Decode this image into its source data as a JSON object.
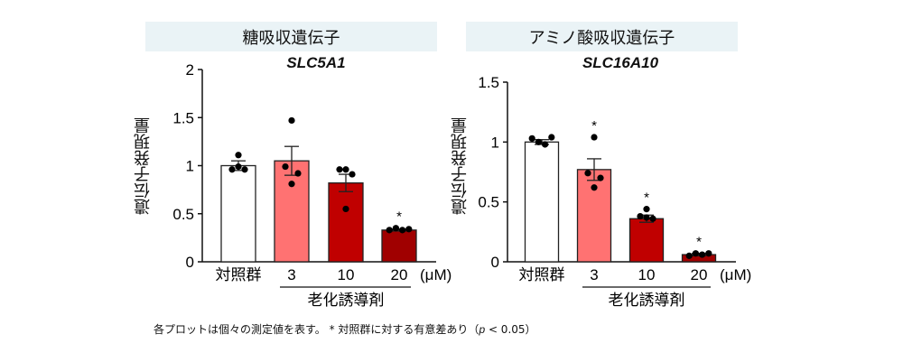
{
  "chart_data": [
    {
      "type": "bar",
      "header": "糖吸収遺伝子",
      "title": "SLC5A1",
      "ylabel": "遺伝子発現量",
      "ylim": [
        0,
        2
      ],
      "yticks": [
        0,
        0.5,
        1,
        1.5,
        2
      ],
      "ytick_labels": [
        "0",
        "0.5",
        "1",
        "1.5",
        "2"
      ],
      "categories": [
        "対照群",
        "3",
        "10",
        "20"
      ],
      "unit_label": "(μM)",
      "group_label": "老化誘導剤",
      "colors": [
        "#ffffff",
        "#ff7272",
        "#c00000",
        "#a00000"
      ],
      "values": [
        1.0,
        1.05,
        0.82,
        0.33
      ],
      "sem": [
        0.05,
        0.15,
        0.09,
        0.01
      ],
      "points": [
        [
          1.11,
          0.96,
          0.96,
          0.99
        ],
        [
          1.47,
          0.99,
          0.92,
          0.81
        ],
        [
          0.96,
          0.96,
          0.91,
          0.55
        ],
        [
          0.33,
          0.35,
          0.33,
          0.34
        ]
      ],
      "significance": [
        "",
        "",
        "",
        "*"
      ]
    },
    {
      "type": "bar",
      "header": "アミノ酸吸収遺伝子",
      "title": "SLC16A10",
      "ylabel": "遺伝子発現量",
      "ylim": [
        0,
        1.5
      ],
      "yticks": [
        0,
        0.5,
        1,
        1.5
      ],
      "ytick_labels": [
        "0",
        "0.5",
        "1",
        "1.5"
      ],
      "categories": [
        "対照群",
        "3",
        "10",
        "20"
      ],
      "unit_label": "(μM)",
      "group_label": "老化誘導剤",
      "colors": [
        "#ffffff",
        "#ff7272",
        "#c00000",
        "#a00000"
      ],
      "values": [
        1.0,
        0.77,
        0.36,
        0.06
      ],
      "sem": [
        0.02,
        0.09,
        0.03,
        0.01
      ],
      "points": [
        [
          1.03,
          1.0,
          0.98,
          1.04
        ],
        [
          1.04,
          0.74,
          0.7,
          0.62
        ],
        [
          0.44,
          0.38,
          0.36,
          0.37
        ],
        [
          0.05,
          0.07,
          0.06,
          0.07
        ]
      ],
      "significance": [
        "",
        "*",
        "*",
        "*"
      ]
    }
  ],
  "footnote": {
    "text1": "各プロットは個々の測定値を表す。 * 対照群に対する有意差あり（",
    "p": "p",
    "text2": " < 0.05）"
  }
}
